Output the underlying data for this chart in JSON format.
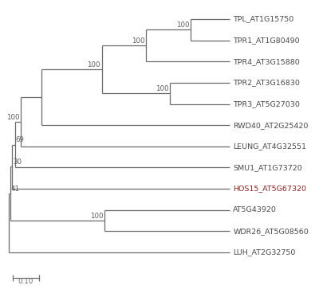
{
  "background_color": "#ffffff",
  "taxa": [
    "TPL_AT1G15750",
    "TPR1_AT1G80490",
    "TPR4_AT3G15880",
    "TPR2_AT3G16830",
    "TPR3_AT5G27030",
    "RWD40_AT2G25420",
    "LEUNG_AT4G32551",
    "SMU1_AT1G73720",
    "HOS15_AT5G67320",
    "AT5G43920",
    "WDR26_AT5G08560",
    "LUH_AT2G32750"
  ],
  "taxa_colors": [
    "#4a4a4a",
    "#4a4a4a",
    "#4a4a4a",
    "#4a4a4a",
    "#4a4a4a",
    "#4a4a4a",
    "#4a4a4a",
    "#4a4a4a",
    "#8B2222",
    "#4a4a4a",
    "#4a4a4a",
    "#4a4a4a"
  ],
  "line_color": "#6a6a6a",
  "font_size": 6.8,
  "bootstrap_font_size": 6.2,
  "bootstrap_color": "#5a5a5a",
  "scale_bar_label": "0.10",
  "lw": 0.9
}
